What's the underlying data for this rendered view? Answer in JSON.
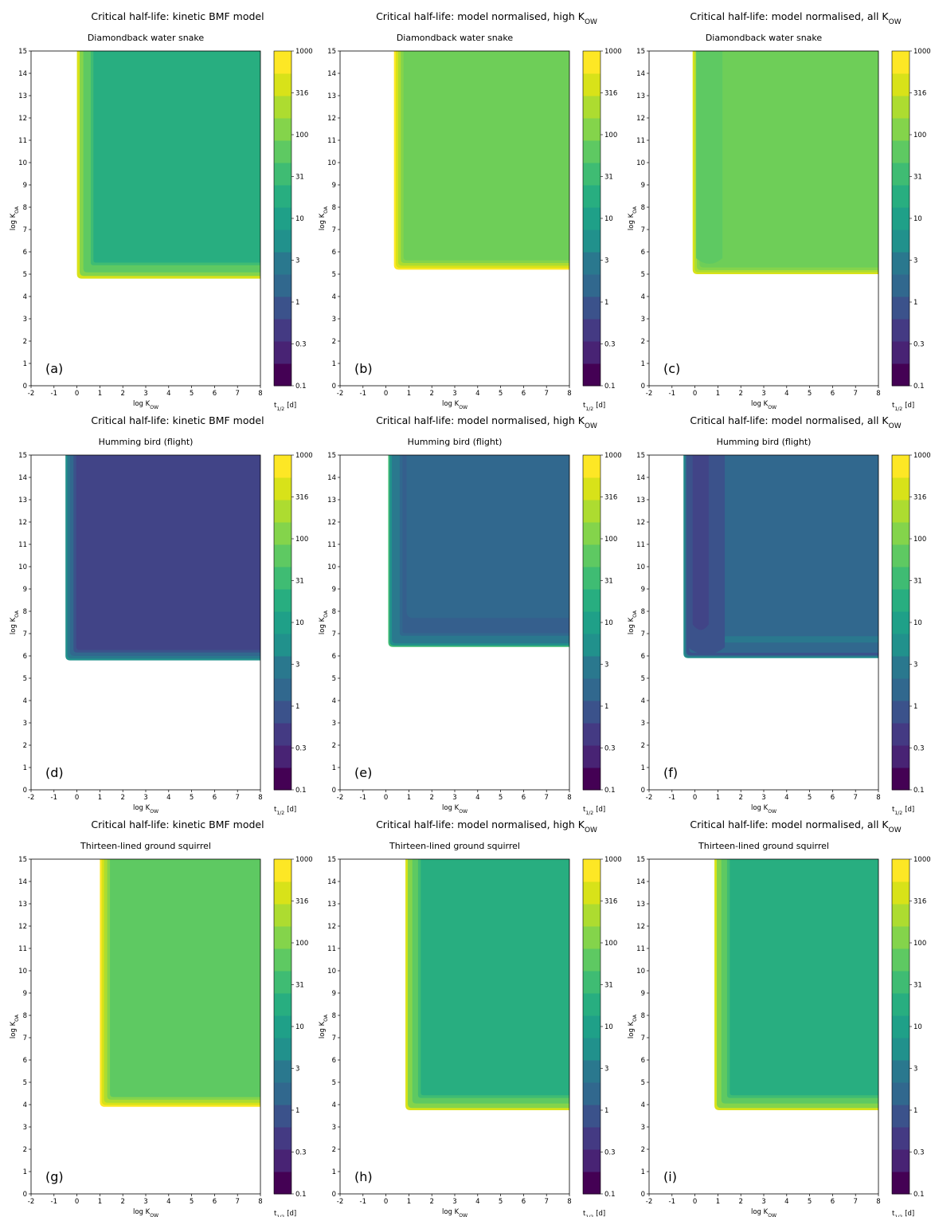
{
  "figure": {
    "titles": {
      "kinetic": "Critical half-life: kinetic BMF model",
      "high": "Critical half-life: model normalised, high K",
      "all": "Critical half-life: model normalised, all K",
      "title_sub": "OW"
    },
    "axes": {
      "xlabel": "log K",
      "xlabel_sub": "OW",
      "ylabel": "log K",
      "ylabel_sub": "OA",
      "xticks": [
        "-2",
        "-1",
        "0",
        "1",
        "2",
        "3",
        "4",
        "5",
        "6",
        "7",
        "8"
      ],
      "yticks": [
        "0",
        "1",
        "2",
        "3",
        "4",
        "5",
        "6",
        "7",
        "8",
        "9",
        "10",
        "11",
        "12",
        "13",
        "14",
        "15"
      ]
    },
    "colorbar": {
      "labels": [
        "0.1",
        "0.3",
        "1",
        "3",
        "10",
        "31",
        "100",
        "316",
        "1000"
      ],
      "label_main": "t",
      "label_sub": "1/2",
      "label_unit": "[d]",
      "colors": [
        "#440154",
        "#482374",
        "#443a83",
        "#3b528b",
        "#31688e",
        "#2a788e",
        "#21918c",
        "#1fa088",
        "#28ae80",
        "#3fbc73",
        "#5ec962",
        "#84d44b",
        "#addc30",
        "#d8e219",
        "#fde725"
      ]
    }
  },
  "chart_data": [
    {
      "label": "(a)",
      "type": "heatmap",
      "title": "Critical half-life: kinetic BMF model",
      "subtitle": "Diamondback water snake",
      "xlim": [
        -2,
        8
      ],
      "ylim": [
        0,
        15
      ],
      "corner": [
        0,
        4.8
      ],
      "bands": [
        {
          "offset": 0,
          "color": "#d8e219"
        },
        {
          "offset": 0.12,
          "color": "#84d44b"
        },
        {
          "offset": 0.28,
          "color": "#5ec962"
        },
        {
          "offset": 0.6,
          "color": "#3fbc73"
        }
      ],
      "fill": "#28ae80",
      "fill_level_days": 50
    },
    {
      "label": "(b)",
      "type": "heatmap",
      "title": "Critical half-life: model normalised, high KOW",
      "subtitle": "Diamondback water snake",
      "xlim": [
        -2,
        8
      ],
      "ylim": [
        0,
        15
      ],
      "corner": [
        0.35,
        5.2
      ],
      "bands": [
        {
          "offset": 0,
          "color": "#fde725"
        },
        {
          "offset": 0.08,
          "color": "#d8e219"
        },
        {
          "offset": 0.18,
          "color": "#addc30"
        },
        {
          "offset": 0.3,
          "color": "#84d44b"
        }
      ],
      "fill": "#6ece58",
      "fill_level_days": 180
    },
    {
      "label": "(c)",
      "type": "heatmap",
      "title": "Critical half-life: model normalised, all KOW",
      "subtitle": "Diamondback water snake",
      "xlim": [
        -2,
        8
      ],
      "ylim": [
        0,
        15
      ],
      "corner": [
        -0.1,
        5.0
      ],
      "bands": [
        {
          "offset": 0,
          "color": "#d8e219"
        },
        {
          "offset": 0.08,
          "color": "#addc30"
        },
        {
          "offset": 0.18,
          "color": "#84d44b"
        }
      ],
      "fill": "#6ece58",
      "fill_level_days": 180,
      "inner": {
        "x0": 0.05,
        "x1": 1.2,
        "y0": 5.5,
        "color": "#5ec962"
      }
    },
    {
      "label": "(d)",
      "type": "heatmap",
      "title": "Critical half-life: kinetic BMF model",
      "subtitle": "Humming bird (flight)",
      "xlim": [
        -2,
        8
      ],
      "ylim": [
        0,
        15
      ],
      "corner": [
        -0.5,
        5.8
      ],
      "bands": [
        {
          "offset": 0,
          "color": "#21918c"
        },
        {
          "offset": 0.08,
          "color": "#2a788e"
        },
        {
          "offset": 0.2,
          "color": "#31688e"
        },
        {
          "offset": 0.35,
          "color": "#3b528b"
        }
      ],
      "fill": "#414487",
      "fill_level_days": 1
    },
    {
      "label": "(e)",
      "type": "heatmap",
      "title": "Critical half-life: model normalised, high KOW",
      "subtitle": "Humming bird (flight)",
      "xlim": [
        -2,
        8
      ],
      "ylim": [
        0,
        15
      ],
      "corner": [
        0.1,
        6.4
      ],
      "bands": [
        {
          "offset": 0,
          "color": "#3fbc73"
        },
        {
          "offset": 0.06,
          "color": "#21918c"
        },
        {
          "offset": 0.16,
          "color": "#2a788e"
        },
        {
          "offset": 0.5,
          "color": "#31688e"
        }
      ],
      "fill": "#355f8d",
      "fill_level_days": 5,
      "inner": {
        "x0": 0.9,
        "x1": 8,
        "y0": 7.7,
        "color": "#31688e"
      }
    },
    {
      "label": "(f)",
      "type": "heatmap",
      "title": "Critical half-life: model normalised, all KOW",
      "subtitle": "Humming bird (flight)",
      "xlim": [
        -2,
        8
      ],
      "ylim": [
        0,
        15
      ],
      "corner": [
        -0.5,
        5.9
      ],
      "bands": [
        {
          "offset": 0,
          "color": "#21918c"
        },
        {
          "offset": 0.05,
          "color": "#2a788e"
        },
        {
          "offset": 0.12,
          "color": "#3b528b"
        }
      ],
      "fill": "#31688e",
      "fill_level_days": 5,
      "inner": {
        "x0": -0.1,
        "x1": 0.6,
        "y0": 7.2,
        "color": "#414487"
      },
      "inner2": {
        "x0": -0.3,
        "x1": 1.3,
        "y0": 6.1,
        "color": "#3b528b"
      },
      "floor": {
        "y": 6.6,
        "color": "#2a788e"
      }
    },
    {
      "label": "(g)",
      "type": "heatmap",
      "title": "Critical half-life: kinetic BMF model",
      "subtitle": "Thirteen-lined ground squirrel",
      "xlim": [
        -2,
        8
      ],
      "ylim": [
        0,
        15
      ],
      "corner": [
        1.0,
        3.9
      ],
      "bands": [
        {
          "offset": 0,
          "color": "#fde725"
        },
        {
          "offset": 0.08,
          "color": "#d8e219"
        },
        {
          "offset": 0.18,
          "color": "#addc30"
        },
        {
          "offset": 0.32,
          "color": "#84d44b"
        }
      ],
      "fill": "#5ec962",
      "fill_level_days": 100
    },
    {
      "label": "(h)",
      "type": "heatmap",
      "title": "Critical half-life: model normalised, high KOW",
      "subtitle": "Thirteen-lined ground squirrel",
      "xlim": [
        -2,
        8
      ],
      "ylim": [
        0,
        15
      ],
      "corner": [
        0.85,
        3.75
      ],
      "bands": [
        {
          "offset": 0,
          "color": "#d8e219"
        },
        {
          "offset": 0.1,
          "color": "#84d44b"
        },
        {
          "offset": 0.3,
          "color": "#5ec962"
        },
        {
          "offset": 0.55,
          "color": "#3fbc73"
        }
      ],
      "fill": "#28ae80",
      "fill_level_days": 40
    },
    {
      "label": "(i)",
      "type": "heatmap",
      "title": "Critical half-life: model normalised, all KOW",
      "subtitle": "Thirteen-lined ground squirrel",
      "xlim": [
        -2,
        8
      ],
      "ylim": [
        0,
        15
      ],
      "corner": [
        0.85,
        3.75
      ],
      "bands": [
        {
          "offset": 0,
          "color": "#d8e219"
        },
        {
          "offset": 0.1,
          "color": "#84d44b"
        },
        {
          "offset": 0.3,
          "color": "#5ec962"
        },
        {
          "offset": 0.55,
          "color": "#3fbc73"
        }
      ],
      "fill": "#28ae80",
      "fill_level_days": 40
    }
  ]
}
